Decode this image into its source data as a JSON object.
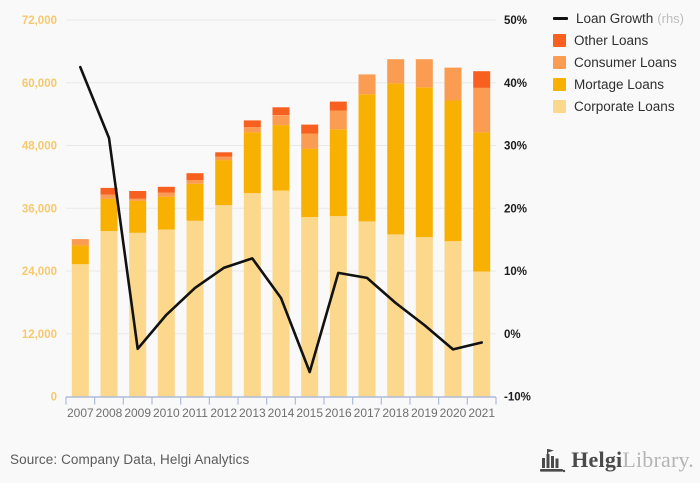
{
  "page_background": "#f9f9f9",
  "chart_data": {
    "type": "bar",
    "subtype": "stacked-bar-with-line",
    "categories": [
      "2007",
      "2008",
      "2009",
      "2010",
      "2011",
      "2012",
      "2013",
      "2014",
      "2015",
      "2016",
      "2017",
      "2018",
      "2019",
      "2020",
      "2021"
    ],
    "series": [
      {
        "name": "Corporate Loans",
        "type": "bar",
        "color": "#fcd88c",
        "values": [
          25300,
          31600,
          31300,
          31900,
          33600,
          36600,
          38900,
          39400,
          34300,
          34500,
          33500,
          31000,
          30500,
          29700,
          23900
        ]
      },
      {
        "name": "Mortage Loans",
        "type": "bar",
        "color": "#f9b101",
        "values": [
          3600,
          6200,
          6100,
          6300,
          7100,
          8600,
          11600,
          12500,
          13100,
          16600,
          24300,
          28900,
          28600,
          26900,
          26600
        ]
      },
      {
        "name": "Consumer Loans",
        "type": "bar",
        "color": "#fb9c53",
        "values": [
          1200,
          800,
          400,
          800,
          700,
          700,
          1000,
          1900,
          2900,
          3600,
          3800,
          4600,
          5400,
          6300,
          8500
        ]
      },
      {
        "name": "Other Loans",
        "type": "bar",
        "color": "#f8601f",
        "values": [
          0,
          1300,
          1500,
          1100,
          1300,
          800,
          1300,
          1500,
          1700,
          1700,
          0,
          0,
          0,
          0,
          3200
        ]
      },
      {
        "name": "Loan Growth",
        "type": "line",
        "axis": "right",
        "color": "#121212",
        "values": [
          42.5,
          31.2,
          -2.4,
          3.0,
          7.3,
          10.5,
          12.0,
          5.7,
          -6.1,
          9.7,
          8.9,
          4.9,
          1.4,
          -2.5,
          -1.4
        ]
      }
    ],
    "left_axis": {
      "min": 0,
      "max": 72000,
      "step": 12000,
      "tick_labels": [
        "0",
        "12,000",
        "24,000",
        "36,000",
        "48,000",
        "60,000",
        "72,000"
      ],
      "label_color": "#f6c96d"
    },
    "right_axis": {
      "min": -10,
      "max": 50,
      "step": 10,
      "tick_labels": [
        "-10%",
        "0%",
        "10%",
        "20%",
        "30%",
        "40%",
        "50%"
      ],
      "label_color": "#1c1c1c"
    },
    "grid": {
      "on": true,
      "color": "#e9e9e9"
    },
    "x_axis": {
      "line_color": "#aebbd9",
      "label_color": "#6f6f6f"
    },
    "legend_position": "top-right",
    "legend": [
      {
        "label": "Loan Growth",
        "suffix": "(rhs)",
        "marker": "line",
        "color": "#121212"
      },
      {
        "label": "Other Loans",
        "marker": "square",
        "color": "#f8601f"
      },
      {
        "label": "Consumer Loans",
        "marker": "square",
        "color": "#fb9c53"
      },
      {
        "label": "Mortage Loans",
        "marker": "square",
        "color": "#f9b101"
      },
      {
        "label": "Corporate Loans",
        "marker": "square",
        "color": "#fcd88c"
      }
    ]
  },
  "footer": {
    "source": "Source: Company Data, Helgi Analytics",
    "logo": {
      "primary": "Helgi",
      "secondary": "Library."
    }
  }
}
